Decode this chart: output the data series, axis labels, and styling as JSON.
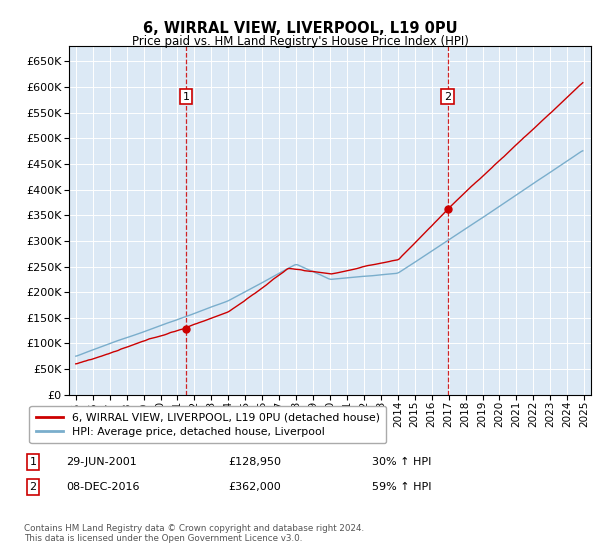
{
  "title": "6, WIRRAL VIEW, LIVERPOOL, L19 0PU",
  "subtitle": "Price paid vs. HM Land Registry's House Price Index (HPI)",
  "ylim": [
    0,
    680000
  ],
  "yticks": [
    0,
    50000,
    100000,
    150000,
    200000,
    250000,
    300000,
    350000,
    400000,
    450000,
    500000,
    550000,
    600000,
    650000
  ],
  "start_year": 1995,
  "end_year": 2025,
  "bg_color": "#dce9f5",
  "grid_color": "#ffffff",
  "red_color": "#cc0000",
  "blue_color": "#7aaecc",
  "sale1_year": 2001.496,
  "sale1_price": 128950,
  "sale2_year": 2016.934,
  "sale2_price": 362000,
  "legend_line1": "6, WIRRAL VIEW, LIVERPOOL, L19 0PU (detached house)",
  "legend_line2": "HPI: Average price, detached house, Liverpool",
  "ann1_num": "1",
  "ann1_date": "29-JUN-2001",
  "ann1_price": "£128,950",
  "ann1_hpi": "30% ↑ HPI",
  "ann2_num": "2",
  "ann2_date": "08-DEC-2016",
  "ann2_price": "£362,000",
  "ann2_hpi": "59% ↑ HPI",
  "footer": "Contains HM Land Registry data © Crown copyright and database right 2024.\nThis data is licensed under the Open Government Licence v3.0."
}
